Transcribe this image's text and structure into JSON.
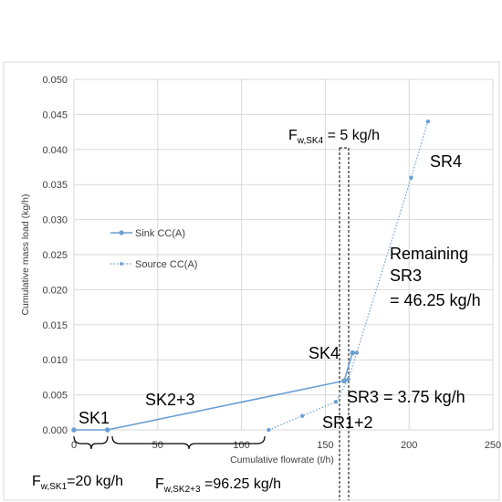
{
  "chart_data": {
    "type": "line",
    "xlabel": "Cumulative flowrate (t/h)",
    "ylabel": "Cumulative mass load (kg/h)",
    "xlim": [
      0,
      250
    ],
    "ylim": [
      0,
      0.05
    ],
    "x_ticks": [
      "0",
      "50",
      "100",
      "150",
      "200",
      "250"
    ],
    "y_ticks": [
      "0.000",
      "0.005",
      "0.010",
      "0.015",
      "0.020",
      "0.025",
      "0.030",
      "0.035",
      "0.040",
      "0.045",
      "0.050"
    ],
    "grid": true,
    "legend_position": "left",
    "series": [
      {
        "name": "Sink CC(A)",
        "style": "solid",
        "color": "#6a9fd4",
        "x": [
          0,
          20,
          161.25,
          166.25
        ],
        "y": [
          0,
          0,
          0.007,
          0.011
        ]
      },
      {
        "name": "Source CC(A)",
        "style": "dotted",
        "color": "#6a9fd4",
        "x": [
          116.25,
          136.25,
          156.25,
          163.75,
          168.75,
          201.25,
          211.25
        ],
        "y": [
          0,
          0.002,
          0.004,
          0.00725,
          0.011,
          0.036,
          0.044
        ]
      }
    ],
    "annotations": {
      "sk1": "SK1",
      "sk23": "SK2+3",
      "sk4": "SK4",
      "sr12": "SR1+2",
      "sr3": "SR3 = 3.75 kg/h",
      "sr4": "SR4",
      "remaining_line1": "Remaining",
      "remaining_line2": "SR3",
      "remaining_line3": "= 46.25 kg/h",
      "fw_sk4_main": "F",
      "fw_sk4_sub": "w,SK4",
      "fw_sk4_val": " = 5 kg/h",
      "fw_sk1_main": "F",
      "fw_sk1_sub": "w,SK1",
      "fw_sk1_val": "=20 kg/h",
      "fw_sk23_main": "F",
      "fw_sk23_sub": "w,SK2+3",
      "fw_sk23_val": " =96.25 kg/h"
    }
  }
}
